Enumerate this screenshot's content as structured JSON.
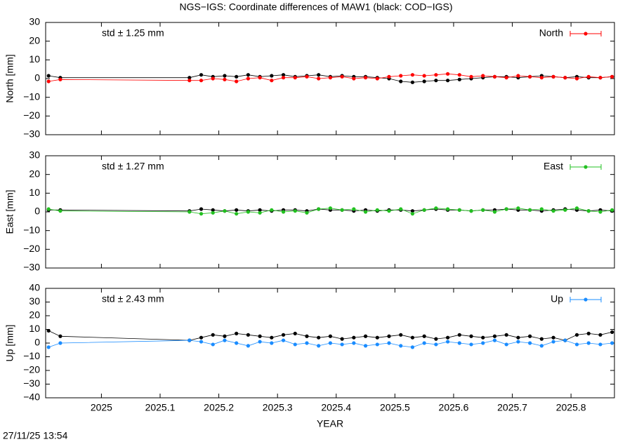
{
  "title": "NGS−IGS: Coordinate differences of MAW1 (black: COD−IGS)",
  "timestamp": "27/11/25 13:54",
  "chart_data": [
    {
      "type": "line",
      "ylabel": "North [mm]",
      "annotation": "std ± 1.25 mm",
      "xlim": [
        2024.905,
        2025.874
      ],
      "xticks": [
        2025,
        2025.1,
        2025.2,
        2025.3,
        2025.4,
        2025.5,
        2025.6,
        2025.7,
        2025.8
      ],
      "ylim": [
        -30,
        30
      ],
      "yticks": [
        {
          "value": -30,
          "label": "−30"
        },
        {
          "value": -20,
          "label": "−20"
        },
        {
          "value": -10,
          "label": "−10"
        },
        0,
        10,
        20,
        30
      ],
      "legend": "top-right",
      "x": [
        2024.91,
        2024.93,
        2025.15,
        2025.17,
        2025.19,
        2025.21,
        2025.23,
        2025.25,
        2025.27,
        2025.29,
        2025.31,
        2025.33,
        2025.35,
        2025.37,
        2025.39,
        2025.41,
        2025.43,
        2025.45,
        2025.47,
        2025.49,
        2025.51,
        2025.53,
        2025.55,
        2025.57,
        2025.59,
        2025.61,
        2025.63,
        2025.65,
        2025.67,
        2025.69,
        2025.71,
        2025.73,
        2025.75,
        2025.77,
        2025.79,
        2025.81,
        2025.83,
        2025.85,
        2025.87
      ],
      "series": [
        {
          "color": "#000000",
          "values": [
            1.5,
            0.5,
            0.5,
            2,
            1,
            1.5,
            1,
            2,
            1,
            1.5,
            2,
            1,
            1.5,
            2,
            1,
            1.5,
            1,
            1,
            0.5,
            0,
            -1.5,
            -2,
            -1.5,
            -1,
            -1,
            -0.5,
            0,
            0.5,
            1,
            1,
            0.5,
            1,
            1.5,
            1,
            0.5,
            1,
            0.5,
            0.5,
            1
          ]
        },
        {
          "name": "North",
          "color": "#ff0000",
          "values": [
            -1.5,
            -0.5,
            -1,
            -1,
            0,
            -0.5,
            -1.5,
            0,
            0.5,
            -1,
            0.5,
            0.5,
            1,
            0,
            0.5,
            1,
            0,
            0.5,
            0,
            1,
            1.5,
            2,
            1.5,
            2,
            2.5,
            2,
            1,
            1.5,
            1,
            0.5,
            1.5,
            1,
            0.5,
            1,
            0.5,
            0,
            1,
            0.5,
            1
          ]
        }
      ]
    },
    {
      "type": "line",
      "ylabel": "East [mm]",
      "annotation": "std ± 1.27 mm",
      "xlim": [
        2024.905,
        2025.874
      ],
      "xticks": [
        2025,
        2025.1,
        2025.2,
        2025.3,
        2025.4,
        2025.5,
        2025.6,
        2025.7,
        2025.8
      ],
      "ylim": [
        -30,
        30
      ],
      "yticks": [
        {
          "value": -30,
          "label": "−30"
        },
        {
          "value": -20,
          "label": "−20"
        },
        {
          "value": -10,
          "label": "−10"
        },
        0,
        10,
        20,
        30
      ],
      "legend": "top-right",
      "x": [
        2024.91,
        2024.93,
        2025.15,
        2025.17,
        2025.19,
        2025.21,
        2025.23,
        2025.25,
        2025.27,
        2025.29,
        2025.31,
        2025.33,
        2025.35,
        2025.37,
        2025.39,
        2025.41,
        2025.43,
        2025.45,
        2025.47,
        2025.49,
        2025.51,
        2025.53,
        2025.55,
        2025.57,
        2025.59,
        2025.61,
        2025.63,
        2025.65,
        2025.67,
        2025.69,
        2025.71,
        2025.73,
        2025.75,
        2025.77,
        2025.79,
        2025.81,
        2025.83,
        2025.85,
        2025.87
      ],
      "series": [
        {
          "color": "#000000",
          "values": [
            1,
            1,
            0.5,
            1.5,
            1,
            0.5,
            1,
            0.5,
            1,
            0.5,
            1,
            1,
            0.5,
            1.5,
            1,
            1,
            0.5,
            1,
            0.5,
            1,
            1,
            0.5,
            1,
            1.5,
            1,
            1,
            0.5,
            1,
            1,
            1.5,
            1,
            1,
            0.5,
            1,
            1.5,
            1,
            0.5,
            1,
            0.5
          ]
        },
        {
          "name": "East",
          "color": "#22c020",
          "values": [
            1.5,
            0.5,
            0,
            -1,
            -0.5,
            0.5,
            -1,
            0,
            -0.5,
            1,
            0,
            0.5,
            -0.5,
            1.5,
            2,
            1,
            1.5,
            0,
            1,
            0.5,
            1.5,
            -1,
            1,
            2,
            1.5,
            1,
            0.5,
            1,
            0,
            1.5,
            2,
            1,
            1.5,
            0.5,
            1,
            2,
            0.5,
            0,
            1
          ]
        }
      ]
    },
    {
      "type": "line",
      "ylabel": "Up [mm]",
      "xlabel": "YEAR",
      "annotation": "std ± 2.43 mm",
      "xlim": [
        2024.905,
        2025.874
      ],
      "xticks": [
        2025,
        2025.1,
        2025.2,
        2025.3,
        2025.4,
        2025.5,
        2025.6,
        2025.7,
        2025.8
      ],
      "ylim": [
        -40,
        40
      ],
      "yticks": [
        {
          "value": -40,
          "label": "−40"
        },
        {
          "value": -30,
          "label": "−30"
        },
        {
          "value": -20,
          "label": "−20"
        },
        {
          "value": -10,
          "label": "−10"
        },
        0,
        10,
        20,
        30,
        40
      ],
      "legend": "top-right",
      "x": [
        2024.91,
        2024.93,
        2025.15,
        2025.17,
        2025.19,
        2025.21,
        2025.23,
        2025.25,
        2025.27,
        2025.29,
        2025.31,
        2025.33,
        2025.35,
        2025.37,
        2025.39,
        2025.41,
        2025.43,
        2025.45,
        2025.47,
        2025.49,
        2025.51,
        2025.53,
        2025.55,
        2025.57,
        2025.59,
        2025.61,
        2025.63,
        2025.65,
        2025.67,
        2025.69,
        2025.71,
        2025.73,
        2025.75,
        2025.77,
        2025.79,
        2025.81,
        2025.83,
        2025.85,
        2025.87
      ],
      "series": [
        {
          "color": "#000000",
          "values": [
            9,
            5,
            2,
            4,
            6,
            5,
            7,
            6,
            5,
            4,
            6,
            7,
            5,
            4,
            5,
            3,
            4,
            5,
            4,
            5,
            6,
            4,
            5,
            3,
            4,
            6,
            5,
            4,
            5,
            6,
            4,
            5,
            3,
            4,
            2,
            6,
            7,
            6,
            8
          ]
        },
        {
          "name": "Up",
          "color": "#1a8cff",
          "values": [
            -3,
            0,
            2,
            1,
            -1,
            2,
            0,
            -2,
            1,
            0,
            2,
            -1,
            0,
            -2,
            0,
            -1,
            0,
            -2,
            -1,
            0,
            -2,
            -3,
            0,
            -1,
            1,
            0,
            -1,
            0,
            2,
            -1,
            1,
            0,
            -2,
            1,
            2,
            -1,
            0,
            -1,
            0
          ]
        }
      ]
    }
  ]
}
